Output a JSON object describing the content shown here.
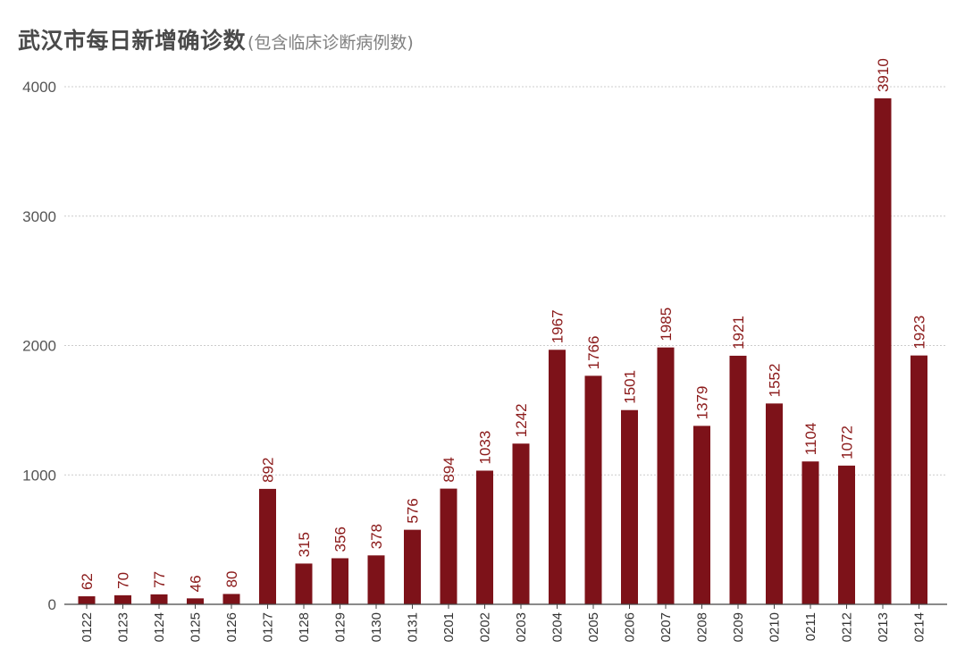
{
  "chart_data": {
    "type": "bar",
    "title": "武汉市每日新增确诊数",
    "subtitle": "(包含临床诊断病例数)",
    "categories": [
      "0122",
      "0123",
      "0124",
      "0125",
      "0126",
      "0127",
      "0128",
      "0129",
      "0130",
      "0131",
      "0201",
      "0202",
      "0203",
      "0204",
      "0205",
      "0206",
      "0207",
      "0208",
      "0209",
      "0210",
      "0211",
      "0212",
      "0213",
      "0214"
    ],
    "values": [
      62,
      70,
      77,
      46,
      80,
      892,
      315,
      356,
      378,
      576,
      894,
      1033,
      1242,
      1967,
      1766,
      1501,
      1985,
      1379,
      1921,
      1552,
      1104,
      1072,
      3910,
      1923
    ],
    "yticks": [
      0,
      1000,
      2000,
      3000,
      4000
    ],
    "ylim": [
      0,
      4000
    ],
    "xlabel": "",
    "ylabel": "",
    "grid": true,
    "bar_color": "#7d1219",
    "label_color": "#8b1a1a"
  }
}
